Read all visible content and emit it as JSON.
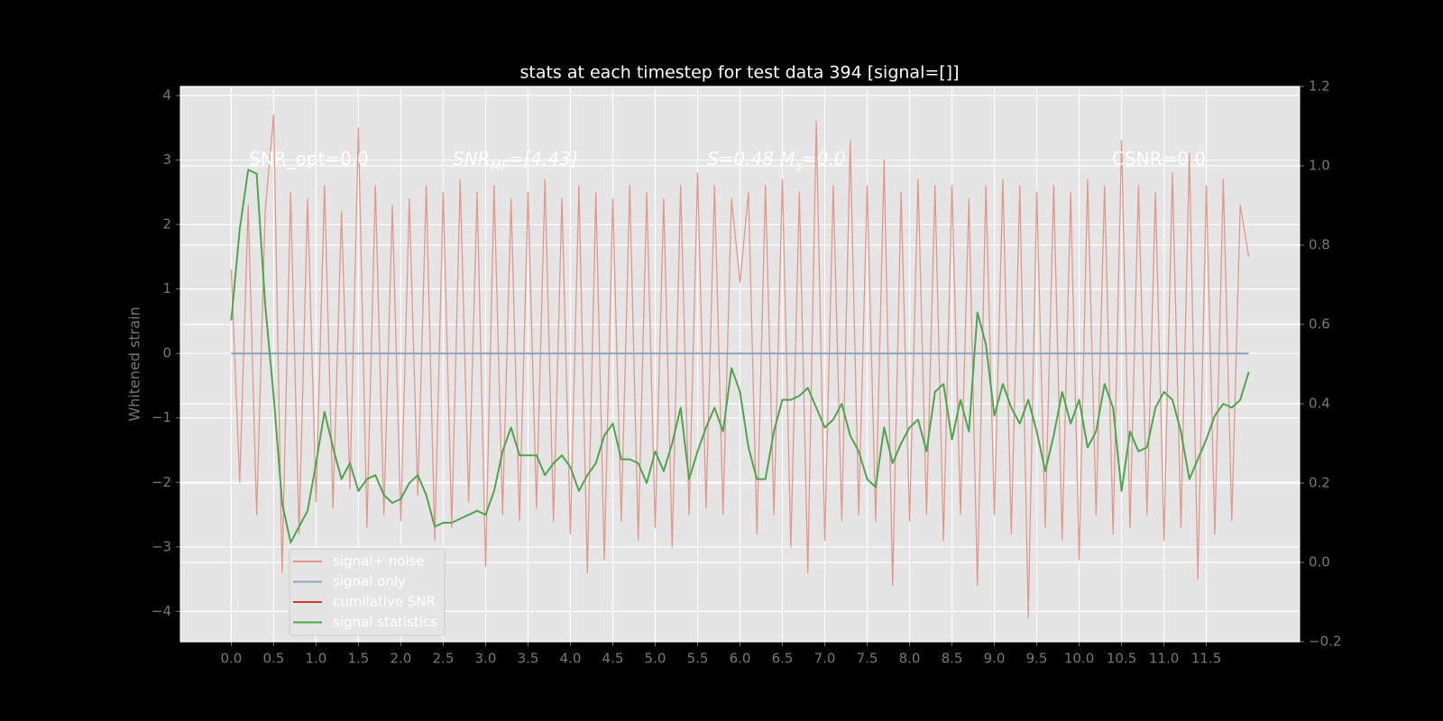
{
  "chart_data": {
    "type": "line",
    "title": "stats at each timestep for test data 394 [signal=[]]",
    "ylabel": "Whitened strain",
    "annotations": [
      [
        "SNR_opt=0.0"
      ],
      [
        "SNR",
        "MF",
        "=[4.43]"
      ],
      [
        "S=0.48  M",
        "s",
        "=0.0"
      ],
      [
        "CSNR=0.0"
      ]
    ],
    "xlim": [
      -0.6,
      12.6
    ],
    "ylim": [
      -4.47,
      4.14
    ],
    "y2lim": [
      -0.2,
      1.2
    ],
    "xticks": [
      {
        "value": 0,
        "label": "0.0"
      },
      0.5,
      {
        "value": 1,
        "label": "1.0"
      },
      1.5,
      {
        "value": 2,
        "label": "2.0"
      },
      2.5,
      {
        "value": 3,
        "label": "3.0"
      },
      3.5,
      {
        "value": 4,
        "label": "4.0"
      },
      4.5,
      {
        "value": 5,
        "label": "5.0"
      },
      5.5,
      {
        "value": 6,
        "label": "6.0"
      },
      6.5,
      {
        "value": 7,
        "label": "7.0"
      },
      7.5,
      {
        "value": 8,
        "label": "8.0"
      },
      8.5,
      {
        "value": 9,
        "label": "9.0"
      },
      9.5,
      {
        "value": 10,
        "label": "10.0"
      },
      10.5,
      {
        "value": 11,
        "label": "11.0"
      },
      11.5
    ],
    "yticks": [
      {
        "value": -4,
        "label": "−4"
      },
      {
        "value": -3,
        "label": "−3"
      },
      {
        "value": -2,
        "label": "−2"
      },
      {
        "value": -1,
        "label": "−1"
      },
      0,
      1,
      2,
      3,
      4
    ],
    "y2ticks": [
      {
        "value": -0.2,
        "label": "−0.2"
      },
      {
        "value": 0,
        "label": "0.0"
      },
      0.2,
      0.4,
      0.6,
      0.8,
      {
        "value": 1,
        "label": "1.0"
      },
      1.2
    ],
    "grid": true,
    "legend": "lower left",
    "series": [
      {
        "name": "signal+ noise",
        "color": "#e3978b",
        "x": [
          0,
          0.1,
          0.2,
          0.3,
          0.4,
          0.5,
          0.6,
          0.7,
          0.8,
          0.9,
          1,
          1.1,
          1.2,
          1.3,
          1.4,
          1.5,
          1.6,
          1.7,
          1.8,
          1.9,
          2,
          2.1,
          2.2,
          2.3,
          2.4,
          2.5,
          2.6,
          2.7,
          2.8,
          2.9,
          3,
          3.1,
          3.2,
          3.3,
          3.4,
          3.5,
          3.6,
          3.7,
          3.8,
          3.9,
          4,
          4.1,
          4.2,
          4.3,
          4.4,
          4.5,
          4.6,
          4.7,
          4.8,
          4.9,
          5,
          5.1,
          5.2,
          5.3,
          5.4,
          5.5,
          5.6,
          5.7,
          5.8,
          5.9,
          6,
          6.1,
          6.2,
          6.3,
          6.4,
          6.5,
          6.6,
          6.7,
          6.8,
          6.9,
          7,
          7.1,
          7.2,
          7.3,
          7.4,
          7.5,
          7.6,
          7.7,
          7.8,
          7.9,
          8,
          8.1,
          8.2,
          8.3,
          8.4,
          8.5,
          8.6,
          8.7,
          8.8,
          8.9,
          9,
          9.1,
          9.2,
          9.3,
          9.4,
          9.5,
          9.6,
          9.7,
          9.8,
          9.9,
          10,
          10.1,
          10.2,
          10.3,
          10.4,
          10.5,
          10.6,
          10.7,
          10.8,
          10.9,
          11,
          11.1,
          11.2,
          11.3,
          11.4,
          11.5,
          11.6,
          11.7,
          11.8,
          11.9,
          12
        ],
        "values": [
          1.3,
          -2.0,
          2.3,
          -2.5,
          2.2,
          3.7,
          -3.4,
          2.5,
          -2.8,
          2.4,
          -2.3,
          2.6,
          -2.4,
          2.2,
          -2.1,
          3.5,
          -2.7,
          2.6,
          -2.5,
          2.3,
          -2.6,
          2.4,
          -2.2,
          2.6,
          -2.9,
          2.5,
          -2.7,
          2.7,
          -2.3,
          2.5,
          -3.3,
          2.6,
          -2.5,
          2.4,
          -2.6,
          2.5,
          -2.4,
          2.7,
          -2.6,
          2.4,
          -2.8,
          2.6,
          -3.4,
          2.5,
          -3.2,
          2.4,
          -2.6,
          2.6,
          -2.9,
          2.5,
          -2.7,
          2.4,
          -3.0,
          2.6,
          -2.5,
          2.8,
          -2.4,
          2.6,
          -2.5,
          2.4,
          1.1,
          2.5,
          -2.8,
          2.6,
          -2.5,
          2.7,
          -3.0,
          2.5,
          -3.4,
          3.6,
          -2.9,
          2.6,
          -2.6,
          3.3,
          -2.5,
          2.6,
          -2.6,
          3.0,
          -3.6,
          2.5,
          -2.6,
          2.7,
          -2.5,
          2.6,
          -2.9,
          2.6,
          -2.5,
          2.4,
          -3.6,
          2.6,
          -2.5,
          2.7,
          -2.8,
          2.6,
          -4.1,
          2.5,
          -2.7,
          2.6,
          -2.9,
          2.5,
          -3.2,
          2.7,
          -2.5,
          2.6,
          -2.8,
          3.3,
          -2.7,
          2.6,
          -2.5,
          2.5,
          -2.9,
          2.8,
          -2.7,
          3.1,
          -3.5,
          2.6,
          -2.8,
          2.7,
          -2.6,
          2.3,
          1.5
        ]
      },
      {
        "name": "signal only",
        "color": "#8da3bd",
        "x": [
          0,
          12
        ],
        "values": [
          0,
          0
        ]
      },
      {
        "name": "cumilative SNR",
        "color": "#d03a2a",
        "x": [],
        "values": []
      },
      {
        "name": "signal statistics",
        "color": "#4fa54f",
        "axis": "y2",
        "x": [
          0,
          0.1,
          0.2,
          0.3,
          0.4,
          0.5,
          0.6,
          0.7,
          0.8,
          0.9,
          1,
          1.1,
          1.2,
          1.3,
          1.4,
          1.5,
          1.6,
          1.7,
          1.8,
          1.9,
          2,
          2.1,
          2.2,
          2.3,
          2.4,
          2.5,
          2.6,
          2.7,
          2.8,
          2.9,
          3,
          3.1,
          3.2,
          3.3,
          3.4,
          3.5,
          3.6,
          3.7,
          3.8,
          3.9,
          4,
          4.1,
          4.2,
          4.3,
          4.4,
          4.5,
          4.6,
          4.7,
          4.8,
          4.9,
          5,
          5.1,
          5.2,
          5.3,
          5.4,
          5.5,
          5.6,
          5.7,
          5.8,
          5.9,
          6,
          6.1,
          6.2,
          6.3,
          6.4,
          6.5,
          6.6,
          6.7,
          6.8,
          6.9,
          7,
          7.1,
          7.2,
          7.3,
          7.4,
          7.5,
          7.6,
          7.7,
          7.8,
          7.9,
          8,
          8.1,
          8.2,
          8.3,
          8.4,
          8.5,
          8.6,
          8.7,
          8.8,
          8.9,
          9,
          9.1,
          9.2,
          9.3,
          9.4,
          9.5,
          9.6,
          9.7,
          9.8,
          9.9,
          10,
          10.1,
          10.2,
          10.3,
          10.4,
          10.5,
          10.6,
          10.7,
          10.8,
          10.9,
          11,
          11.1,
          11.2,
          11.3,
          11.4,
          11.5,
          11.6,
          11.7,
          11.8,
          11.9,
          12
        ],
        "values": [
          0.61,
          0.84,
          0.99,
          0.98,
          0.65,
          0.42,
          0.15,
          0.05,
          0.09,
          0.13,
          0.25,
          0.38,
          0.29,
          0.21,
          0.25,
          0.18,
          0.21,
          0.22,
          0.17,
          0.15,
          0.16,
          0.2,
          0.22,
          0.17,
          0.09,
          0.1,
          0.1,
          0.11,
          0.12,
          0.13,
          0.12,
          0.18,
          0.28,
          0.34,
          0.27,
          0.27,
          0.27,
          0.22,
          0.25,
          0.27,
          0.24,
          0.18,
          0.22,
          0.25,
          0.32,
          0.35,
          0.26,
          0.26,
          0.25,
          0.2,
          0.28,
          0.23,
          0.3,
          0.39,
          0.21,
          0.28,
          0.34,
          0.39,
          0.33,
          0.49,
          0.43,
          0.29,
          0.21,
          0.21,
          0.33,
          0.41,
          0.41,
          0.42,
          0.44,
          0.39,
          0.34,
          0.36,
          0.4,
          0.32,
          0.28,
          0.21,
          0.19,
          0.34,
          0.25,
          0.3,
          0.34,
          0.36,
          0.28,
          0.43,
          0.45,
          0.31,
          0.41,
          0.33,
          0.63,
          0.55,
          0.37,
          0.45,
          0.39,
          0.35,
          0.41,
          0.33,
          0.23,
          0.32,
          0.43,
          0.35,
          0.41,
          0.29,
          0.33,
          0.45,
          0.39,
          0.18,
          0.33,
          0.28,
          0.29,
          0.39,
          0.43,
          0.41,
          0.33,
          0.21,
          0.26,
          0.31,
          0.37,
          0.4,
          0.39,
          0.41,
          0.48
        ]
      }
    ]
  }
}
